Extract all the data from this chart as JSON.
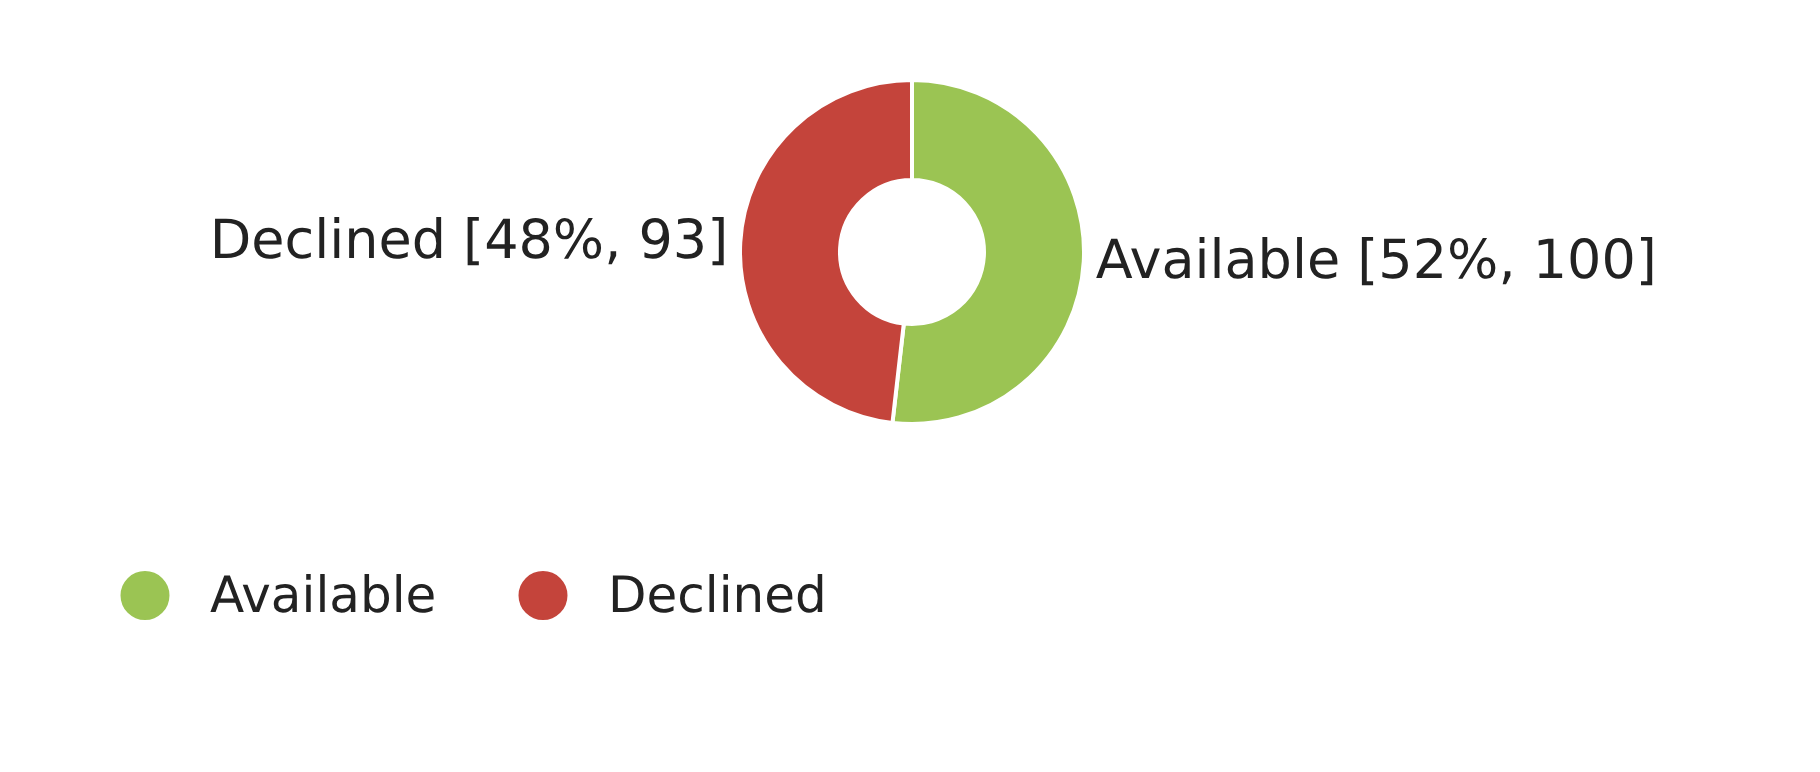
{
  "chart_data": {
    "type": "donut",
    "categories": [
      "Available",
      "Declined"
    ],
    "values": [
      100,
      93
    ],
    "colors": [
      "#9bc453",
      "#c4443b"
    ],
    "value_labels": [
      "[52%, 100]",
      "[48%, 93]"
    ],
    "legend": "bottom left"
  }
}
